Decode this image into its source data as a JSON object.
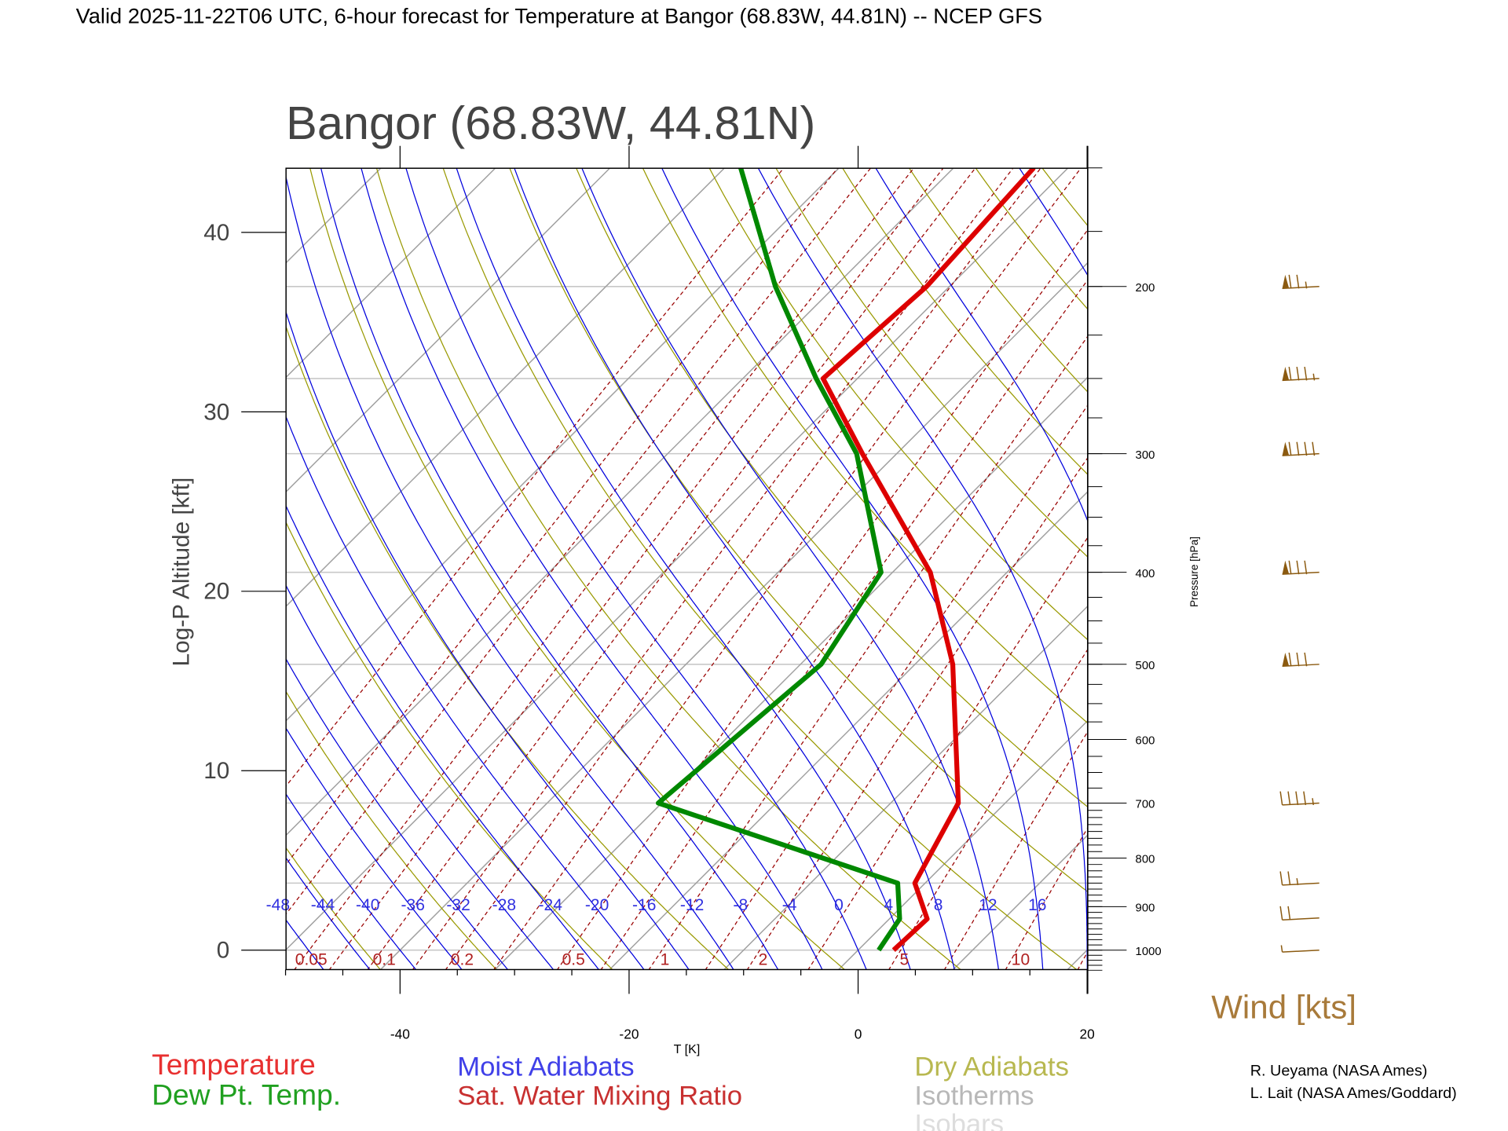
{
  "header": {
    "title": "Valid 2025-11-22T06 UTC, 6-hour forecast for Temperature at Bangor (68.83W, 44.81N) -- NCEP GFS"
  },
  "chart_data": {
    "type": "line",
    "title": "Bangor (68.83W, 44.81N)",
    "xlabel": "T [K]",
    "ylabel": "Log-P Altitude [kft]",
    "y2label": "Pressure [hPa]",
    "xlim": [
      -50,
      20
    ],
    "x_ticks": [
      "-40",
      "-20",
      "0",
      "20"
    ],
    "x_tick_values": [
      -40,
      -20,
      0,
      20
    ],
    "y_ticks": [
      "0",
      "10",
      "20",
      "30",
      "40"
    ],
    "y_tick_values": [
      0,
      10,
      20,
      30,
      40
    ],
    "pressure_ticks": [
      "200",
      "300",
      "400",
      "500",
      "600",
      "700",
      "800",
      "900",
      "1000"
    ],
    "pressure_range_hpa": [
      1050,
      150
    ],
    "series": [
      {
        "name": "Temperature",
        "color": "#dd0000",
        "pressure": [
          1000,
          927,
          850,
          700,
          500,
          400,
          300,
          250,
          200,
          150
        ],
        "values": [
          3.1,
          3.3,
          -0.9,
          -4.1,
          -16.7,
          -26.7,
          -43.0,
          -53.0,
          -52.0,
          -53.0
        ]
      },
      {
        "name": "Dew Pt. Temp.",
        "color": "#008800",
        "pressure": [
          1000,
          927,
          850,
          700,
          500,
          400,
          300,
          250,
          200,
          150
        ],
        "values": [
          1.8,
          0.9,
          -2.4,
          -30.3,
          -28.2,
          -31.0,
          -43.5,
          -53.6,
          -65.2,
          -78.6
        ]
      }
    ],
    "moist_adiabat_labels": [
      "-48",
      "-44",
      "-40",
      "-36",
      "-32",
      "-28",
      "-24",
      "-20",
      "-16",
      "-12",
      "-8",
      "-4",
      "0",
      "4",
      "8",
      "12",
      "16"
    ],
    "moist_adiabat_values": [
      -48,
      -44,
      -40,
      -36,
      -32,
      -28,
      -24,
      -20,
      -16,
      -12,
      -8,
      -4,
      0,
      4,
      8,
      12,
      16
    ],
    "mixing_ratio_labels": [
      "0.05",
      "0.1",
      "0.2",
      "0.5",
      "1",
      "2",
      "5",
      "10"
    ],
    "mixing_ratio_values": [
      0.05,
      0.1,
      0.2,
      0.5,
      1,
      2,
      5,
      10
    ],
    "wind": {
      "label": "Wind [kts]",
      "pressure": [
        200,
        250,
        300,
        400,
        500,
        700,
        850,
        925,
        1000
      ],
      "speed_kts": [
        75,
        85,
        90,
        80,
        80,
        45,
        25,
        20,
        5
      ]
    },
    "legend": {
      "temperature": "Temperature",
      "dewpoint": "Dew Pt. Temp.",
      "moist": "Moist Adiabats",
      "mixing": "Sat. Water Mixing Ratio",
      "dry": "Dry Adiabats",
      "isotherms": "Isotherms",
      "isobars": "Isobars"
    }
  },
  "credits": {
    "line1": "R. Ueyama (NASA Ames)",
    "line2": "L. Lait (NASA Ames/Goddard)"
  },
  "colors": {
    "temperature": "#dd0000",
    "dewpoint": "#008800",
    "moist": "#0000dd",
    "mixing": "#990000",
    "dry": "#999900",
    "isotherm": "#a0a0a0",
    "isobar": "#c8c8c8",
    "wind": "#8b5a10"
  }
}
